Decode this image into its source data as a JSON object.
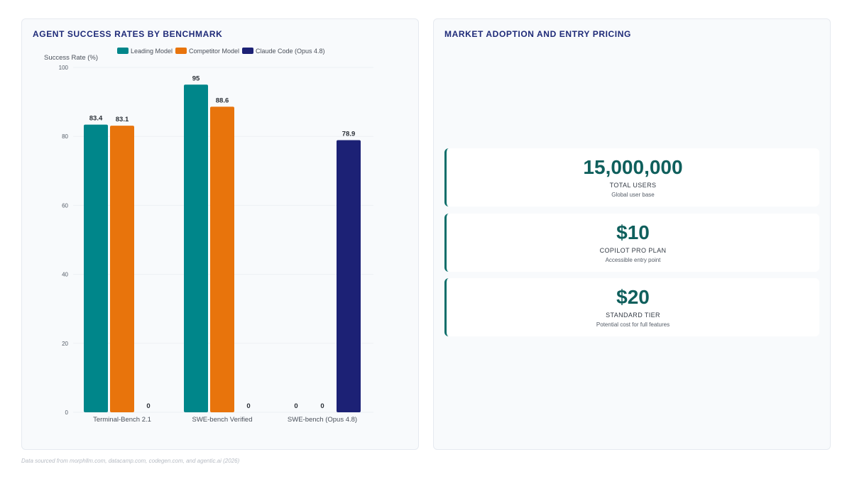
{
  "left_panel": {
    "title": "AGENT SUCCESS RATES BY BENCHMARK"
  },
  "right_panel": {
    "title": "MARKET ADOPTION AND ENTRY PRICING"
  },
  "chart_data": {
    "type": "bar",
    "title": "AGENT SUCCESS RATES BY BENCHMARK",
    "ylabel": "Success Rate (%)",
    "xlabel": "",
    "categories": [
      "Terminal-Bench 2.1",
      "SWE-bench Verified",
      "SWE-bench (Opus 4.8)"
    ],
    "series": [
      {
        "name": "Leading Model",
        "color": "#00868a",
        "values": [
          83.4,
          95,
          0
        ]
      },
      {
        "name": "Competitor Model",
        "color": "#e8740c",
        "values": [
          83.1,
          88.6,
          0
        ]
      },
      {
        "name": "Claude Code (Opus 4.8)",
        "color": "#1c2175",
        "values": [
          0,
          0,
          78.9
        ]
      }
    ],
    "ylim": [
      0,
      100
    ],
    "yticks": [
      0,
      20,
      40,
      60,
      80,
      100
    ],
    "legend_position": "top",
    "grid": true
  },
  "stats": [
    {
      "value": "15,000,000",
      "label": "TOTAL USERS",
      "description": "Global user base"
    },
    {
      "value": "$10",
      "label": "COPILOT PRO PLAN",
      "description": "Accessible entry point"
    },
    {
      "value": "$20",
      "label": "STANDARD TIER",
      "description": "Potential cost for full features"
    }
  ],
  "footnote": "Data sourced from morphllm.com, datacamp.com, codegen.com, and agentic.ai (2026)"
}
